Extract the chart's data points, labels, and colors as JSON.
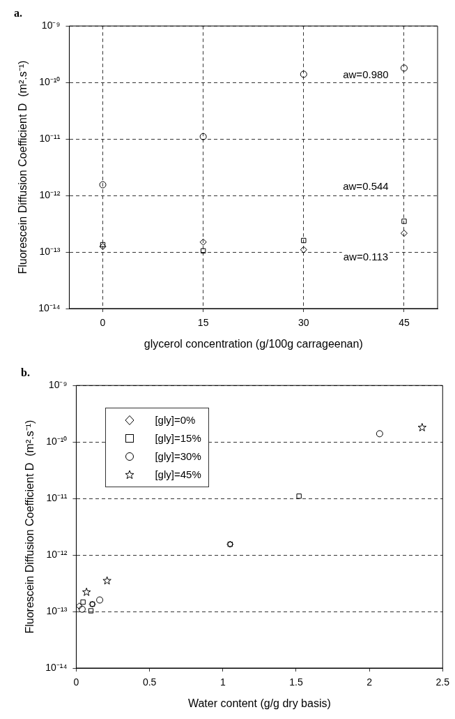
{
  "chart_data": [
    {
      "type": "scatter",
      "title": "a.",
      "xlabel": "glycerol concentration (g/100g carrageenan)",
      "ylabel": "Fluorescein Diffusion Coefficient D  (m².s⁻¹)",
      "log": "y",
      "grid": true,
      "legend": false,
      "xlim": [
        -5,
        50
      ],
      "xticks": [
        0,
        15,
        30,
        45
      ],
      "ylim": [
        1e-14,
        1e-09
      ],
      "yticks": [
        {
          "value": 1e-14,
          "label": "10⁻¹⁴"
        },
        {
          "value": 1e-13,
          "label": "10⁻¹³"
        },
        {
          "value": 1e-12,
          "label": "10⁻¹²"
        },
        {
          "value": 1e-11,
          "label": "10⁻¹¹"
        },
        {
          "value": 1e-10,
          "label": "10⁻¹⁰"
        },
        {
          "value": 1e-09,
          "label": "10⁻⁹"
        }
      ],
      "series": [
        {
          "color": "#000000",
          "marker": "diamond",
          "x": [
            0,
            15,
            30,
            45
          ],
          "values": [
            1.25e-13,
            1.5e-13,
            1.1e-13,
            2.15e-13
          ]
        },
        {
          "color": "#000000",
          "marker": "square",
          "x": [
            0,
            15,
            30,
            45
          ],
          "values": [
            1.35e-13,
            1.05e-13,
            1.6e-13,
            3.5e-13
          ]
        },
        {
          "color": "#000000",
          "marker": "circle",
          "x": [
            0,
            15,
            30,
            45
          ],
          "values": [
            1.55e-12,
            1.1e-11,
            1.4e-10,
            1.8e-10
          ]
        }
      ],
      "annotations": [
        "aw=0.980",
        "aw=0.544",
        "aw=0.113"
      ]
    },
    {
      "type": "scatter",
      "title": "b.",
      "xlabel": "Water content (g/g dry basis)",
      "ylabel": "Fluorescein Diffusion Coefficient D  (m².s⁻¹)",
      "log": "y",
      "grid": "y",
      "legend": "top left",
      "xlim": [
        0,
        2.5
      ],
      "xticks": [
        0,
        0.5,
        1,
        1.5,
        2,
        2.5
      ],
      "ylim": [
        1e-14,
        1e-09
      ],
      "yticks": [
        {
          "value": 1e-14,
          "label": "10⁻¹⁴"
        },
        {
          "value": 1e-13,
          "label": "10⁻¹³"
        },
        {
          "value": 1e-12,
          "label": "10⁻¹²"
        },
        {
          "value": 1e-11,
          "label": "10⁻¹¹"
        },
        {
          "value": 1e-10,
          "label": "10⁻¹⁰"
        },
        {
          "value": 1e-09,
          "label": "10⁻⁹"
        }
      ],
      "series": [
        {
          "name": "[gly]=0%",
          "color": "#000000",
          "marker": "diamond",
          "x": [
            0.02,
            0.11,
            1.05
          ],
          "values": [
            1.25e-13,
            1.35e-13,
            1.55e-12
          ]
        },
        {
          "name": "[gly]=15%",
          "color": "#000000",
          "marker": "square",
          "x": [
            0.046,
            0.1,
            0.11,
            1.05,
            1.52
          ],
          "values": [
            1.47e-13,
            1.03e-13,
            1.35e-13,
            1.55e-12,
            1.1e-11
          ]
        },
        {
          "name": "[gly]=30%",
          "color": "#000000",
          "marker": "circle",
          "x": [
            0.04,
            0.16,
            2.07
          ],
          "values": [
            1.1e-13,
            1.6e-13,
            1.4e-10
          ]
        },
        {
          "name": "[gly]=45%",
          "color": "#000000",
          "marker": "star",
          "x": [
            0.07,
            0.21,
            2.36
          ],
          "values": [
            2.2e-13,
            3.5e-13,
            1.8e-10
          ]
        }
      ]
    }
  ]
}
